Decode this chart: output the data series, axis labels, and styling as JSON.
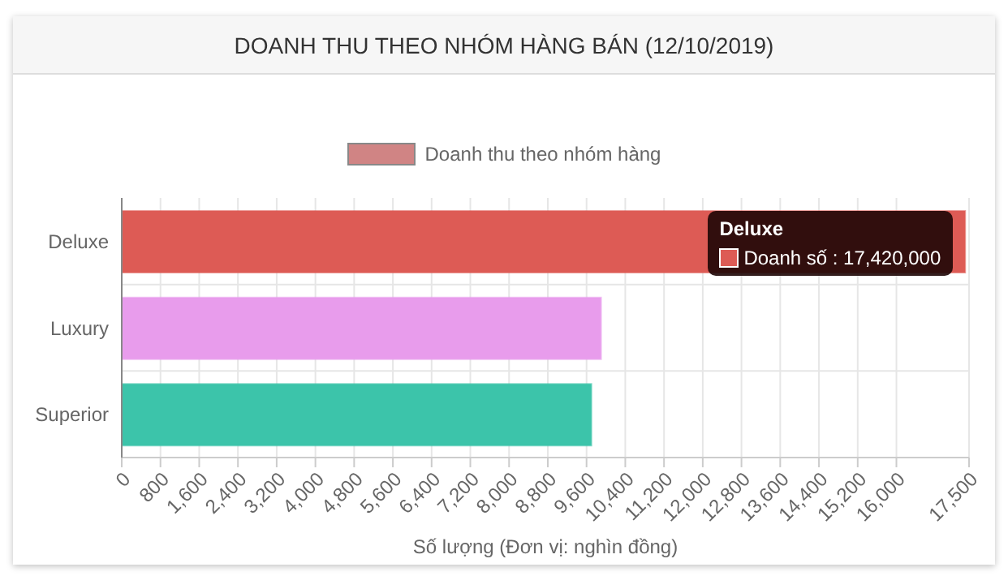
{
  "chart_data": {
    "type": "bar",
    "orientation": "horizontal",
    "title": "DOANH THU THEO NHÓM HÀNG BÁN (12/10/2019)",
    "xlabel": "Số lượng (Đơn vị: nghìn đồng)",
    "categories": [
      "Deluxe",
      "Luxury",
      "Superior"
    ],
    "series": [
      {
        "name": "Doanh thu theo nhóm hàng",
        "color": "#d08484",
        "colors": [
          "#dd5b55",
          "#e89cec",
          "#3cc4aa"
        ],
        "values": [
          17420,
          9900,
          9700
        ]
      }
    ],
    "xlim": [
      0,
      17500
    ],
    "xticks": [
      0,
      800,
      {
        "value": 1600,
        "label": "1,600"
      },
      {
        "value": 2400,
        "label": "2,400"
      },
      {
        "value": 3200,
        "label": "3,200"
      },
      {
        "value": 4000,
        "label": "4,000"
      },
      {
        "value": 4800,
        "label": "4,800"
      },
      {
        "value": 5600,
        "label": "5,600"
      },
      {
        "value": 6400,
        "label": "6,400"
      },
      {
        "value": 7200,
        "label": "7,200"
      },
      {
        "value": 8000,
        "label": "8,000"
      },
      {
        "value": 8800,
        "label": "8,800"
      },
      {
        "value": 9600,
        "label": "9,600"
      },
      {
        "value": 10400,
        "label": "10,400"
      },
      {
        "value": 11200,
        "label": "11,200"
      },
      {
        "value": 12000,
        "label": "12,000"
      },
      {
        "value": 12800,
        "label": "12,800"
      },
      {
        "value": 13600,
        "label": "13,600"
      },
      {
        "value": 14400,
        "label": "14,400"
      },
      {
        "value": 15200,
        "label": "15,200"
      },
      {
        "value": 16000,
        "label": "16,000"
      },
      {
        "value": 17500,
        "label": "17,500"
      }
    ],
    "grid": true,
    "legend": "top",
    "annotations": [
      "Deluxe",
      "Doanh số : 17,420,000"
    ]
  }
}
